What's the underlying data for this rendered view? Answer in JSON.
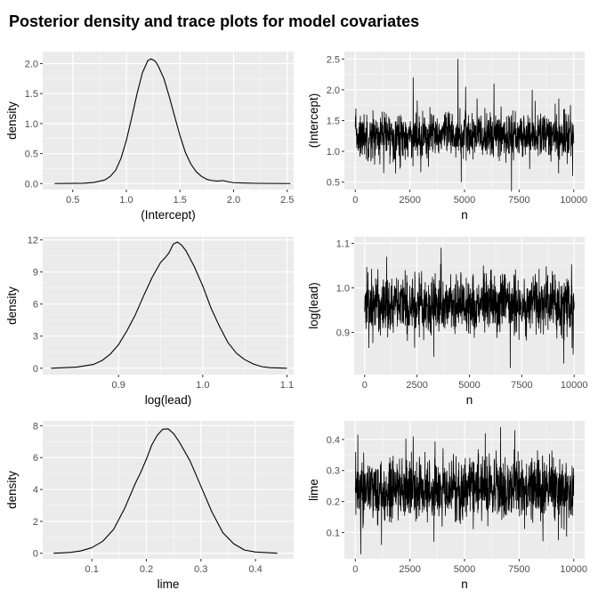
{
  "title": "Posterior density and trace plots for model covariates",
  "style": {
    "panel_bg": "#ebebeb",
    "grid_major": "#ffffff",
    "line": "#000000",
    "tick_text": "#4d4d4d"
  },
  "chart_data": [
    {
      "id": "density-intercept",
      "type": "line",
      "kind": "density",
      "xlabel": "(Intercept)",
      "ylabel": "density",
      "xlim": [
        0.22,
        2.56
      ],
      "ylim": [
        -0.1,
        2.2
      ],
      "xticks": [
        0.5,
        1.0,
        1.5,
        2.0,
        2.5
      ],
      "xtick_labels": [
        "0.5",
        "1.0",
        "1.5",
        "2.0",
        "2.5"
      ],
      "yticks": [
        0.0,
        0.5,
        1.0,
        1.5,
        2.0
      ],
      "ytick_labels": [
        "0.0",
        "0.5",
        "1.0",
        "1.5",
        "2.0"
      ],
      "x": [
        0.33,
        0.6,
        0.7,
        0.8,
        0.85,
        0.9,
        0.95,
        1.0,
        1.05,
        1.1,
        1.15,
        1.2,
        1.23,
        1.27,
        1.3,
        1.35,
        1.4,
        1.45,
        1.5,
        1.55,
        1.6,
        1.65,
        1.7,
        1.75,
        1.8,
        1.85,
        1.9,
        1.95,
        2.0,
        2.1,
        2.2,
        2.3,
        2.53
      ],
      "y": [
        0.0,
        0.005,
        0.02,
        0.06,
        0.12,
        0.22,
        0.42,
        0.72,
        1.1,
        1.5,
        1.85,
        2.05,
        2.08,
        2.04,
        1.95,
        1.75,
        1.45,
        1.12,
        0.8,
        0.52,
        0.33,
        0.2,
        0.12,
        0.07,
        0.05,
        0.04,
        0.05,
        0.03,
        0.015,
        0.008,
        0.004,
        0.002,
        0.0
      ]
    },
    {
      "id": "trace-intercept",
      "type": "line",
      "kind": "trace",
      "xlabel": "n",
      "ylabel": "(Intercept)",
      "xlim": [
        -500,
        10500
      ],
      "ylim": [
        0.38,
        2.62
      ],
      "xticks": [
        0,
        2500,
        5000,
        7500,
        10000
      ],
      "xtick_labels": [
        "0",
        "2500",
        "5000",
        "7500",
        "10000"
      ],
      "yticks": [
        0.5,
        1.0,
        1.5,
        2.0,
        2.5
      ],
      "ytick_labels": [
        "0.5",
        "1.0",
        "1.5",
        "2.0",
        "2.5"
      ],
      "n": 10000,
      "mean": 1.25,
      "sd": 0.19,
      "spikes": [
        [
          2650,
          2.2
        ],
        [
          4700,
          2.5
        ],
        [
          6350,
          2.1
        ],
        [
          5050,
          2.05
        ],
        [
          8100,
          2.0
        ],
        [
          4850,
          0.5
        ],
        [
          1300,
          0.65
        ],
        [
          7150,
          0.35
        ],
        [
          9950,
          0.6
        ],
        [
          2050,
          0.72
        ],
        [
          3350,
          0.75
        ]
      ]
    },
    {
      "id": "density-lead",
      "type": "line",
      "kind": "density",
      "xlabel": "log(lead)",
      "ylabel": "density",
      "xlim": [
        0.81,
        1.108
      ],
      "ylim": [
        -0.6,
        12.3
      ],
      "xticks": [
        0.9,
        1.0,
        1.1
      ],
      "xtick_labels": [
        "0.9",
        "1.0",
        "1.1"
      ],
      "yticks": [
        0,
        3,
        6,
        9,
        12
      ],
      "ytick_labels": [
        "0",
        "3",
        "6",
        "9",
        "12"
      ],
      "x": [
        0.82,
        0.85,
        0.87,
        0.88,
        0.89,
        0.9,
        0.91,
        0.92,
        0.93,
        0.94,
        0.95,
        0.955,
        0.96,
        0.965,
        0.97,
        0.975,
        0.98,
        0.99,
        1.0,
        1.01,
        1.02,
        1.03,
        1.04,
        1.05,
        1.06,
        1.07,
        1.08,
        1.1
      ],
      "y": [
        0.0,
        0.1,
        0.35,
        0.7,
        1.3,
        2.2,
        3.5,
        5.0,
        6.8,
        8.5,
        9.9,
        10.3,
        10.8,
        11.6,
        11.8,
        11.5,
        11.0,
        9.5,
        7.7,
        5.6,
        3.9,
        2.4,
        1.4,
        0.8,
        0.4,
        0.15,
        0.05,
        0.0
      ]
    },
    {
      "id": "trace-lead",
      "type": "line",
      "kind": "trace",
      "xlabel": "n",
      "ylabel": "log(lead)",
      "xlim": [
        -500,
        10500
      ],
      "ylim": [
        0.805,
        1.115
      ],
      "xticks": [
        0,
        2500,
        5000,
        7500,
        10000
      ],
      "xtick_labels": [
        "0",
        "2500",
        "5000",
        "7500",
        "10000"
      ],
      "yticks": [
        0.9,
        1.0,
        1.1
      ],
      "ytick_labels": [
        "0.9",
        "1.0",
        "1.1"
      ],
      "n": 10000,
      "mean": 0.963,
      "sd": 0.034,
      "spikes": [
        [
          3650,
          1.09
        ],
        [
          1050,
          1.07
        ],
        [
          6950,
          0.82
        ],
        [
          9500,
          0.83
        ],
        [
          3300,
          0.845
        ],
        [
          200,
          0.865
        ],
        [
          9950,
          0.85
        ]
      ]
    },
    {
      "id": "density-lime",
      "type": "line",
      "kind": "density",
      "xlabel": "lime",
      "ylabel": "density",
      "xlim": [
        0.01,
        0.47
      ],
      "ylim": [
        -0.35,
        8.3
      ],
      "xticks": [
        0.1,
        0.2,
        0.3,
        0.4
      ],
      "xtick_labels": [
        "0.1",
        "0.2",
        "0.3",
        "0.4"
      ],
      "yticks": [
        0,
        2,
        4,
        6,
        8
      ],
      "ytick_labels": [
        "0",
        "2",
        "4",
        "6",
        "8"
      ],
      "x": [
        0.03,
        0.06,
        0.08,
        0.1,
        0.12,
        0.14,
        0.16,
        0.18,
        0.19,
        0.2,
        0.21,
        0.22,
        0.23,
        0.24,
        0.25,
        0.26,
        0.27,
        0.28,
        0.3,
        0.32,
        0.34,
        0.36,
        0.38,
        0.4,
        0.44
      ],
      "y": [
        0.0,
        0.05,
        0.15,
        0.35,
        0.75,
        1.5,
        2.8,
        4.4,
        5.1,
        5.9,
        6.8,
        7.4,
        7.78,
        7.8,
        7.5,
        7.0,
        6.4,
        5.8,
        4.2,
        2.6,
        1.3,
        0.6,
        0.2,
        0.08,
        0.0
      ]
    },
    {
      "id": "trace-lime",
      "type": "line",
      "kind": "trace",
      "xlabel": "n",
      "ylabel": "lime",
      "xlim": [
        -500,
        10500
      ],
      "ylim": [
        0.015,
        0.46
      ],
      "xticks": [
        0,
        2500,
        5000,
        7500,
        10000
      ],
      "xtick_labels": [
        "0",
        "2500",
        "5000",
        "7500",
        "10000"
      ],
      "yticks": [
        0.1,
        0.2,
        0.3,
        0.4
      ],
      "ytick_labels": [
        "0.1",
        "0.2",
        "0.3",
        "0.4"
      ],
      "n": 10000,
      "mean": 0.238,
      "sd": 0.052,
      "spikes": [
        [
          6650,
          0.44
        ],
        [
          7300,
          0.43
        ],
        [
          5950,
          0.42
        ],
        [
          2650,
          0.41
        ],
        [
          120,
          0.415
        ],
        [
          250,
          0.03
        ],
        [
          1200,
          0.06
        ],
        [
          3600,
          0.07
        ],
        [
          9300,
          0.075
        ]
      ]
    }
  ]
}
